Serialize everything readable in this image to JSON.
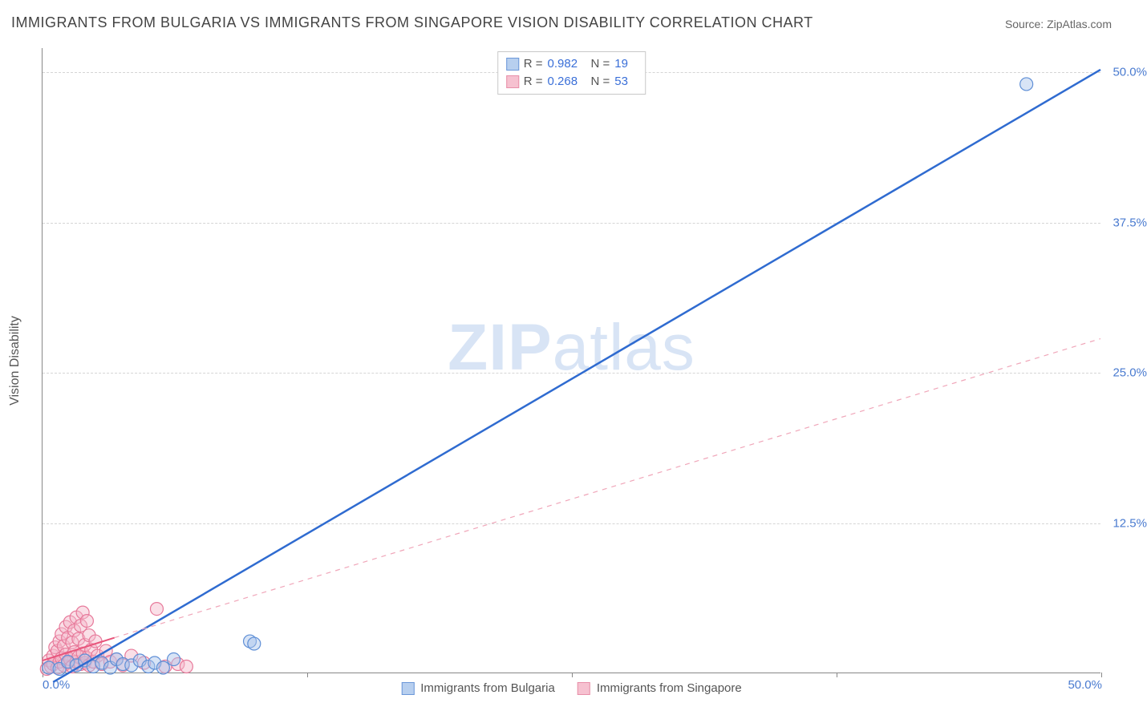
{
  "title": "IMMIGRANTS FROM BULGARIA VS IMMIGRANTS FROM SINGAPORE VISION DISABILITY CORRELATION CHART",
  "source_label": "Source: ZipAtlas.com",
  "y_axis_title": "Vision Disability",
  "watermark": {
    "bold": "ZIP",
    "rest": "atlas"
  },
  "chart": {
    "type": "scatter",
    "xlim": [
      0,
      50
    ],
    "ylim": [
      0,
      52
    ],
    "x_start_label": "0.0%",
    "x_end_label": "50.0%",
    "y_ticks": [
      {
        "value": 12.5,
        "label": "12.5%"
      },
      {
        "value": 25.0,
        "label": "25.0%"
      },
      {
        "value": 37.5,
        "label": "37.5%"
      },
      {
        "value": 50.0,
        "label": "50.0%"
      }
    ],
    "x_tick_positions": [
      0,
      12.5,
      25,
      37.5,
      50
    ],
    "grid_color": "#d5d5d5",
    "axis_color": "#888888",
    "background_color": "#ffffff",
    "title_fontsize": 18,
    "tick_fontsize": 15,
    "tick_color": "#4a7bd0",
    "marker_radius": 8,
    "marker_opacity": 0.45,
    "series": [
      {
        "name": "Immigrants from Bulgaria",
        "color_fill": "#a9c4ea",
        "color_stroke": "#5f8fd6",
        "swatch_fill": "#b7cfef",
        "swatch_border": "#6b97d9",
        "R": "0.982",
        "N": "19",
        "trend": {
          "style": "solid",
          "width": 2.5,
          "color": "#2f6bd0",
          "x1": 0.5,
          "y1": -0.8,
          "x2": 50,
          "y2": 50.2
        },
        "points": [
          {
            "x": 0.3,
            "y": 0.4
          },
          {
            "x": 0.8,
            "y": 0.3
          },
          {
            "x": 1.2,
            "y": 0.9
          },
          {
            "x": 1.6,
            "y": 0.6
          },
          {
            "x": 2.0,
            "y": 1.0
          },
          {
            "x": 2.4,
            "y": 0.5
          },
          {
            "x": 2.8,
            "y": 0.8
          },
          {
            "x": 3.2,
            "y": 0.4
          },
          {
            "x": 3.5,
            "y": 1.1
          },
          {
            "x": 3.8,
            "y": 0.7
          },
          {
            "x": 4.2,
            "y": 0.6
          },
          {
            "x": 4.6,
            "y": 1.0
          },
          {
            "x": 5.0,
            "y": 0.5
          },
          {
            "x": 5.3,
            "y": 0.8
          },
          {
            "x": 5.7,
            "y": 0.4
          },
          {
            "x": 6.2,
            "y": 1.1
          },
          {
            "x": 9.8,
            "y": 2.6
          },
          {
            "x": 10.0,
            "y": 2.4
          },
          {
            "x": 46.5,
            "y": 49.0
          }
        ]
      },
      {
        "name": "Immigrants from Singapore",
        "color_fill": "#f4b9c9",
        "color_stroke": "#e77a9b",
        "swatch_fill": "#f6c1d0",
        "swatch_border": "#e88fa9",
        "R": "0.268",
        "N": "53",
        "trend_solid": {
          "style": "solid",
          "width": 2,
          "color": "#e8547b",
          "x1": 0,
          "y1": 1.0,
          "x2": 3.4,
          "y2": 2.9
        },
        "trend_dashed": {
          "style": "dashed",
          "width": 1.2,
          "color": "#f0a6b9",
          "dash": "6,6",
          "x1": 3.4,
          "y1": 2.9,
          "x2": 50,
          "y2": 27.8
        },
        "points": [
          {
            "x": 0.2,
            "y": 0.3
          },
          {
            "x": 0.3,
            "y": 1.0
          },
          {
            "x": 0.4,
            "y": 0.5
          },
          {
            "x": 0.5,
            "y": 1.4
          },
          {
            "x": 0.5,
            "y": 0.7
          },
          {
            "x": 0.6,
            "y": 2.1
          },
          {
            "x": 0.7,
            "y": 0.4
          },
          {
            "x": 0.7,
            "y": 1.8
          },
          {
            "x": 0.8,
            "y": 0.9
          },
          {
            "x": 0.8,
            "y": 2.6
          },
          {
            "x": 0.9,
            "y": 1.2
          },
          {
            "x": 0.9,
            "y": 3.2
          },
          {
            "x": 1.0,
            "y": 0.6
          },
          {
            "x": 1.0,
            "y": 2.2
          },
          {
            "x": 1.1,
            "y": 1.5
          },
          {
            "x": 1.1,
            "y": 3.8
          },
          {
            "x": 1.2,
            "y": 0.8
          },
          {
            "x": 1.2,
            "y": 2.9
          },
          {
            "x": 1.3,
            "y": 1.1
          },
          {
            "x": 1.3,
            "y": 4.2
          },
          {
            "x": 1.4,
            "y": 0.5
          },
          {
            "x": 1.4,
            "y": 2.5
          },
          {
            "x": 1.5,
            "y": 1.7
          },
          {
            "x": 1.5,
            "y": 3.5
          },
          {
            "x": 1.6,
            "y": 0.9
          },
          {
            "x": 1.6,
            "y": 4.6
          },
          {
            "x": 1.7,
            "y": 1.3
          },
          {
            "x": 1.7,
            "y": 2.8
          },
          {
            "x": 1.8,
            "y": 0.7
          },
          {
            "x": 1.8,
            "y": 3.9
          },
          {
            "x": 1.9,
            "y": 1.6
          },
          {
            "x": 1.9,
            "y": 5.0
          },
          {
            "x": 2.0,
            "y": 0.8
          },
          {
            "x": 2.0,
            "y": 2.3
          },
          {
            "x": 2.1,
            "y": 1.2
          },
          {
            "x": 2.1,
            "y": 4.3
          },
          {
            "x": 2.2,
            "y": 0.6
          },
          {
            "x": 2.2,
            "y": 3.1
          },
          {
            "x": 2.3,
            "y": 1.9
          },
          {
            "x": 2.4,
            "y": 0.9
          },
          {
            "x": 2.5,
            "y": 2.6
          },
          {
            "x": 2.6,
            "y": 1.4
          },
          {
            "x": 2.8,
            "y": 0.7
          },
          {
            "x": 3.0,
            "y": 1.8
          },
          {
            "x": 3.2,
            "y": 0.9
          },
          {
            "x": 3.5,
            "y": 1.1
          },
          {
            "x": 3.8,
            "y": 0.6
          },
          {
            "x": 4.2,
            "y": 1.4
          },
          {
            "x": 4.8,
            "y": 0.8
          },
          {
            "x": 5.4,
            "y": 5.3
          },
          {
            "x": 5.8,
            "y": 0.5
          },
          {
            "x": 6.4,
            "y": 0.7
          },
          {
            "x": 6.8,
            "y": 0.5
          }
        ]
      }
    ]
  },
  "legend_top": {
    "rows": [
      {
        "series_idx": 0,
        "r_label": "R =",
        "n_label": "N ="
      },
      {
        "series_idx": 1,
        "r_label": "R =",
        "n_label": "N ="
      }
    ]
  },
  "legend_bottom": [
    {
      "series_idx": 0
    },
    {
      "series_idx": 1
    }
  ]
}
